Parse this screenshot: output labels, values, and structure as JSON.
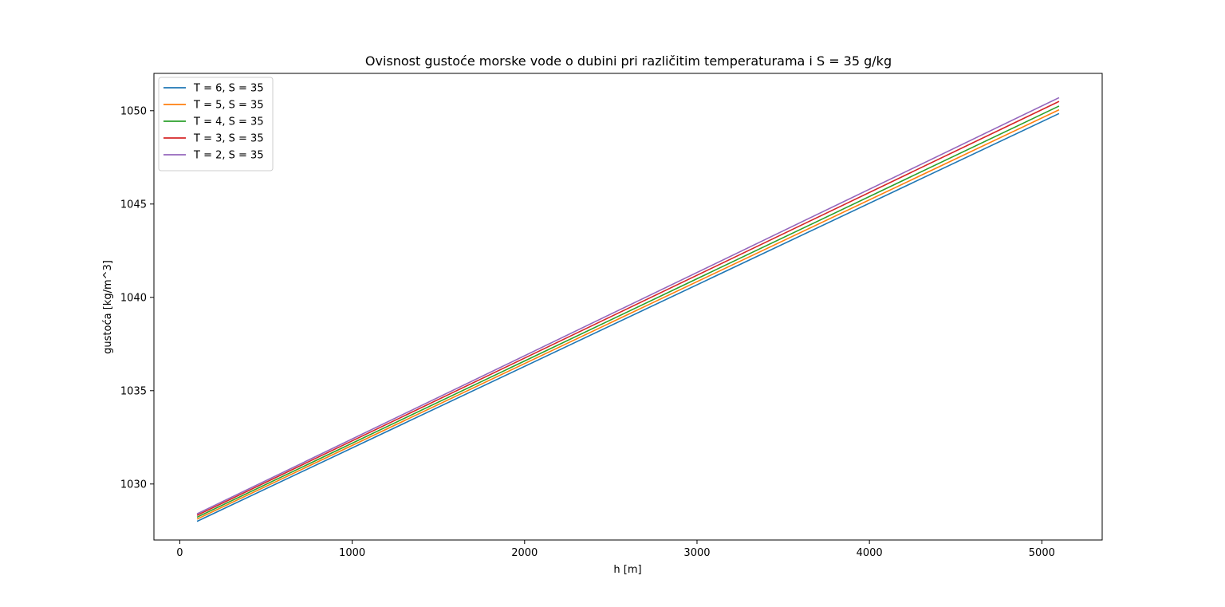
{
  "chart_data": {
    "type": "line",
    "title": "Ovisnost gustoće morske vode o dubini pri različitim temperaturama i S = 35 g/kg",
    "xlabel": "h [m]",
    "ylabel": "gustoća [kg/m^3]",
    "xlim": [
      -150,
      5350
    ],
    "ylim": [
      1027.0,
      1052.0
    ],
    "xticks": [
      0,
      1000,
      2000,
      3000,
      4000,
      5000
    ],
    "yticks": [
      1030,
      1035,
      1040,
      1045,
      1050
    ],
    "grid": false,
    "legend_position": "top-left",
    "x": [
      100,
      5100
    ],
    "series": [
      {
        "name": "T = 6, S = 35",
        "color": "#1f77b4",
        "values": [
          1028.0,
          1049.85
        ]
      },
      {
        "name": "T = 5, S = 35",
        "color": "#ff7f0e",
        "values": [
          1028.12,
          1050.05
        ]
      },
      {
        "name": "T = 4, S = 35",
        "color": "#2ca02c",
        "values": [
          1028.22,
          1050.25
        ]
      },
      {
        "name": "T = 3, S = 35",
        "color": "#d62728",
        "values": [
          1028.32,
          1050.5
        ]
      },
      {
        "name": "T = 2, S = 35",
        "color": "#9467bd",
        "values": [
          1028.4,
          1050.7
        ]
      }
    ]
  }
}
